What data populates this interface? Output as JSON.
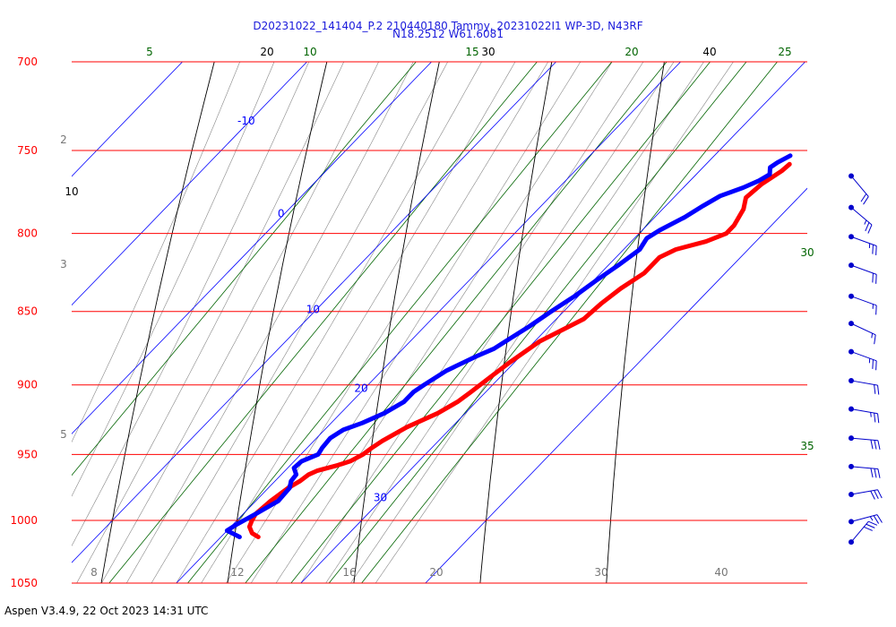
{
  "header": {
    "line1": "D20231022_141404_P.2 210440180 Tammy, 20231022I1 WP-3D, N43RF",
    "line2": "N18.2512 W61.6081"
  },
  "footer": "Aspen V3.4.9, 22 Oct 2023  14:31 UTC",
  "colors": {
    "isobar": "#ff0000",
    "isotherm": "#0000ff",
    "dry_adiabat": "#000000",
    "moist_adiabat": "#888888",
    "mixing_ratio": "#006400",
    "temperature": "#ff0000",
    "dewpoint": "#0000ff",
    "wind": "#0000cc"
  },
  "chart_data": {
    "type": "line",
    "diagram": "skew-T log-P",
    "ylim": [
      1050,
      700
    ],
    "pressure_levels": [
      "700",
      "750",
      "800",
      "850",
      "900",
      "950",
      "1000",
      "1050"
    ],
    "isotherm_labels": [
      "-10",
      "0",
      "10",
      "20",
      "30"
    ],
    "bottom_labels": [
      "8",
      "12",
      "16",
      "20",
      "30",
      "40"
    ],
    "theta_labels": [
      "20",
      "30",
      "40",
      "10"
    ],
    "mixing_ratio_labels": [
      "5",
      "10",
      "15",
      "20",
      "25",
      "30",
      "35"
    ],
    "left_small_labels": [
      "2",
      "3",
      "5"
    ],
    "series": [
      {
        "key": "temperature",
        "points": [
          [
            1013,
            23.0
          ],
          [
            1010,
            22.2
          ],
          [
            1005,
            21.5
          ],
          [
            1000,
            21.2
          ],
          [
            995,
            21.0
          ],
          [
            985,
            21.2
          ],
          [
            975,
            21.6
          ],
          [
            970,
            22.0
          ],
          [
            965,
            22.2
          ],
          [
            962,
            22.6
          ],
          [
            958,
            23.8
          ],
          [
            955,
            24.5
          ],
          [
            950,
            25.0
          ],
          [
            945,
            25.2
          ],
          [
            940,
            25.5
          ],
          [
            930,
            26.4
          ],
          [
            920,
            27.8
          ],
          [
            912,
            28.5
          ],
          [
            905,
            28.8
          ],
          [
            895,
            29.2
          ],
          [
            885,
            29.6
          ],
          [
            870,
            30.4
          ],
          [
            860,
            31.6
          ],
          [
            855,
            32.2
          ],
          [
            845,
            32.4
          ],
          [
            835,
            32.8
          ],
          [
            825,
            33.5
          ],
          [
            815,
            33.5
          ],
          [
            810,
            34.2
          ],
          [
            805,
            36.0
          ],
          [
            800,
            37.0
          ],
          [
            795,
            37.0
          ],
          [
            785,
            36.5
          ],
          [
            778,
            35.8
          ],
          [
            770,
            36.0
          ],
          [
            762,
            36.6
          ],
          [
            758,
            36.7
          ]
        ]
      },
      {
        "key": "dewpoint",
        "points": [
          [
            1013,
            21.5
          ],
          [
            1010,
            20.6
          ],
          [
            1008,
            20.0
          ],
          [
            1003,
            20.3
          ],
          [
            995,
            21.0
          ],
          [
            985,
            21.8
          ],
          [
            975,
            21.7
          ],
          [
            970,
            21.3
          ],
          [
            965,
            21.2
          ],
          [
            960,
            20.5
          ],
          [
            955,
            20.6
          ],
          [
            950,
            21.4
          ],
          [
            945,
            21.2
          ],
          [
            938,
            21.1
          ],
          [
            932,
            21.5
          ],
          [
            927,
            22.5
          ],
          [
            920,
            23.5
          ],
          [
            912,
            24.2
          ],
          [
            905,
            24.2
          ],
          [
            900,
            24.5
          ],
          [
            890,
            25.2
          ],
          [
            880,
            26.5
          ],
          [
            875,
            27.3
          ],
          [
            868,
            27.8
          ],
          [
            860,
            28.4
          ],
          [
            850,
            29.0
          ],
          [
            840,
            29.7
          ],
          [
            830,
            30.2
          ],
          [
            820,
            30.8
          ],
          [
            810,
            31.3
          ],
          [
            803,
            31.0
          ],
          [
            798,
            31.4
          ],
          [
            790,
            32.4
          ],
          [
            783,
            33.0
          ],
          [
            777,
            33.6
          ],
          [
            772,
            34.8
          ],
          [
            768,
            35.5
          ],
          [
            764,
            35.9
          ],
          [
            760,
            35.4
          ],
          [
            757,
            35.6
          ],
          [
            753,
            36.1
          ]
        ]
      }
    ],
    "wind_barbs": [
      {
        "p": 765,
        "dir": 140,
        "speed": 20
      },
      {
        "p": 784,
        "dir": 130,
        "speed": 25
      },
      {
        "p": 802,
        "dir": 110,
        "speed": 25
      },
      {
        "p": 820,
        "dir": 110,
        "speed": 20
      },
      {
        "p": 840,
        "dir": 110,
        "speed": 15
      },
      {
        "p": 858,
        "dir": 115,
        "speed": 15
      },
      {
        "p": 877,
        "dir": 110,
        "speed": 25
      },
      {
        "p": 897,
        "dir": 100,
        "speed": 20
      },
      {
        "p": 917,
        "dir": 100,
        "speed": 25
      },
      {
        "p": 938,
        "dir": 95,
        "speed": 30
      },
      {
        "p": 959,
        "dir": 95,
        "speed": 30
      },
      {
        "p": 980,
        "dir": 80,
        "speed": 30
      },
      {
        "p": 1001,
        "dir": 75,
        "speed": 25
      },
      {
        "p": 1017,
        "dir": 40,
        "speed": 30
      }
    ]
  }
}
